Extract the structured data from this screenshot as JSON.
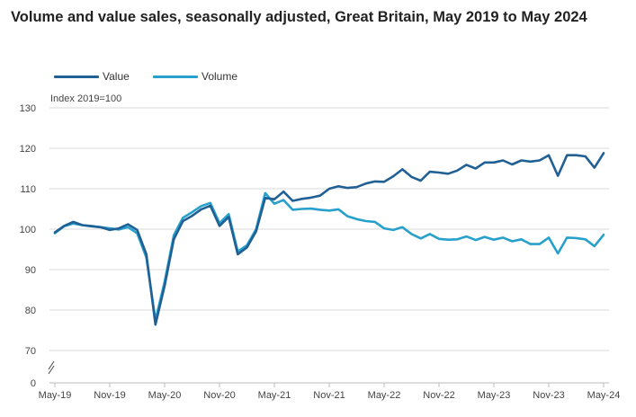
{
  "chart_data": {
    "type": "line",
    "title": "Volume and value sales, seasonally adjusted, Great Britain, May 2019 to May 2024",
    "ylabel": "Index 2019=100",
    "xlabel": "",
    "ylim": [
      70,
      130
    ],
    "y_ticks": [
      130,
      120,
      110,
      100,
      90,
      80,
      70
    ],
    "y_axis_break_label": "0",
    "x_tick_labels": [
      "May-19",
      "Nov-19",
      "May-20",
      "Nov-20",
      "May-21",
      "Nov-21",
      "May-22",
      "Nov-22",
      "May-23",
      "Nov-23",
      "May-24"
    ],
    "x_tick_month_index": [
      0,
      6,
      12,
      18,
      24,
      30,
      36,
      42,
      48,
      54,
      60
    ],
    "legend_position": "top-left",
    "grid": true,
    "series": [
      {
        "name": "Value",
        "color": "#206095",
        "values": [
          99.2,
          100.8,
          101.8,
          101.0,
          100.7,
          100.5,
          99.8,
          100.2,
          101.2,
          99.8,
          93.8,
          76.4,
          86.0,
          97.5,
          102.0,
          103.3,
          104.9,
          105.8,
          100.8,
          103.0,
          93.8,
          95.5,
          99.5,
          107.7,
          107.4,
          109.3,
          107.0,
          107.5,
          107.8,
          108.3,
          110.0,
          110.6,
          110.2,
          110.4,
          111.3,
          111.8,
          111.7,
          113.1,
          114.8,
          112.9,
          112.0,
          114.2,
          114.0,
          113.7,
          114.5,
          115.9,
          115.0,
          116.5,
          116.5,
          117.0,
          116.0,
          117.0,
          116.7,
          117.0,
          118.3,
          113.2,
          118.3,
          118.3,
          118.0,
          115.2,
          118.8
        ]
      },
      {
        "name": "Volume",
        "color": "#27a0cc",
        "values": [
          99.0,
          100.7,
          101.4,
          101.0,
          100.8,
          100.5,
          100.2,
          99.9,
          100.5,
          99.0,
          93.0,
          77.5,
          87.0,
          98.5,
          102.8,
          104.2,
          105.7,
          106.5,
          101.5,
          103.7,
          94.5,
          96.0,
          100.0,
          108.9,
          106.3,
          107.2,
          104.8,
          105.0,
          105.1,
          104.8,
          104.6,
          104.9,
          103.2,
          102.5,
          102.0,
          101.8,
          100.2,
          99.8,
          100.5,
          98.8,
          97.7,
          98.8,
          97.6,
          97.4,
          97.5,
          98.2,
          97.3,
          98.1,
          97.4,
          97.9,
          97.0,
          97.5,
          96.3,
          96.3,
          97.9,
          94.0,
          97.9,
          97.8,
          97.5,
          95.8,
          98.6
        ]
      }
    ]
  }
}
